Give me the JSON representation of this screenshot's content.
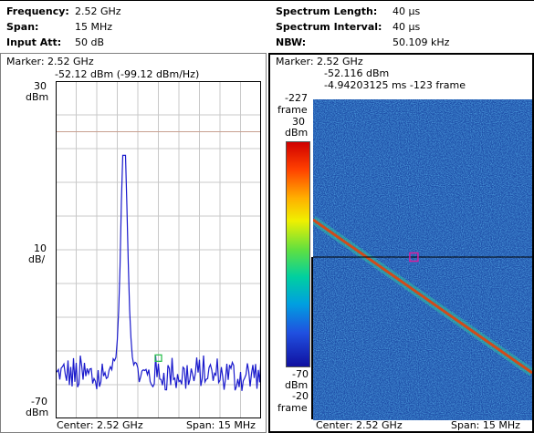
{
  "header": {
    "left": [
      {
        "label": "Frequency:",
        "value": "2.52 GHz"
      },
      {
        "label": "Span:",
        "value": "15 MHz"
      },
      {
        "label": "Input Att:",
        "value": "50 dB"
      }
    ],
    "right": [
      {
        "label": "Spectrum Length:",
        "value": "40 µs"
      },
      {
        "label": "Spectrum Interval:",
        "value": "40 µs"
      },
      {
        "label": "NBW:",
        "value": "50.109 kHz"
      }
    ]
  },
  "spectrum": {
    "marker_line1": "Marker: 2.52 GHz",
    "marker_line2": "-52.12 dBm (-99.12 dBm/Hz)",
    "ref_level": "30",
    "ref_unit": "dBm",
    "scale_value": "10",
    "scale_unit": "dB/",
    "bottom_level": "-70",
    "bottom_unit": "dBm",
    "center": "Center: 2.52 GHz",
    "span": "Span: 15 MHz",
    "colors": {
      "trace": "#1a1acc",
      "limit_line": "#c8a090",
      "grid": "#c8c8c8"
    }
  },
  "spectrogram": {
    "marker_line1": "Marker: 2.52 GHz",
    "marker_line2": "-52.116 dBm",
    "marker_line3": "-4.94203125 ms   -123 frame",
    "top_frame": "-227",
    "top_frame_unit": "frame",
    "color_top": "30",
    "color_top_unit": "dBm",
    "color_bottom": "-70",
    "color_bottom_unit": "dBm",
    "bottom_frame": "-20",
    "bottom_frame_unit": "frame",
    "center": "Center: 2.52 GHz",
    "span": "Span: 15 MHz",
    "colors": {
      "background": "#1e4fa8",
      "diagonal": "#d24a1a",
      "marker": "#d81e9e"
    }
  },
  "chart_data": {
    "type": "line",
    "title": "",
    "xlabel": "",
    "ylabel": "",
    "x_center_ghz": 2.52,
    "x_span_mhz": 15,
    "ylim": [
      -70,
      30
    ],
    "y_unit": "dBm",
    "grid": true,
    "peak": {
      "x_ghz": 2.5175,
      "y_dbm": 8
    },
    "limit_line_dbm": 15,
    "marker": {
      "x_ghz": 2.52,
      "y_dbm": -52.12
    }
  }
}
